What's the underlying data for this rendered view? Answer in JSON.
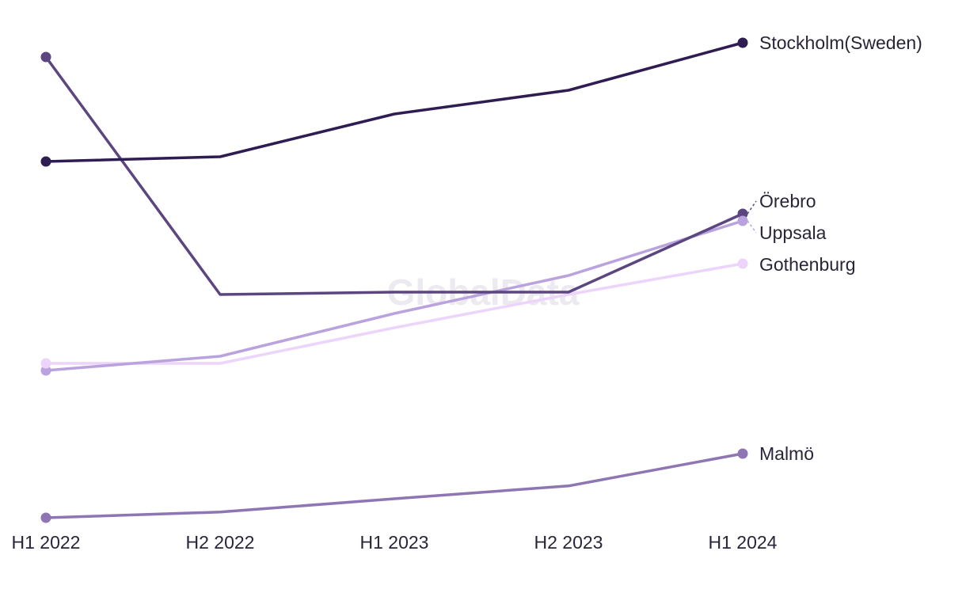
{
  "watermark": "GlobalData",
  "chart_data": {
    "type": "line",
    "title": "",
    "xlabel": "",
    "ylabel": "",
    "categories": [
      "H1 2022",
      "H2 2022",
      "H1 2023",
      "H2 2023",
      "H1 2024"
    ],
    "ylim": [
      0,
      100
    ],
    "grid": false,
    "legend": "direct labels at right end of lines",
    "series": [
      {
        "name": "Stockholm(Sweden)",
        "color": "#2f1c52",
        "values": [
          75,
          76,
          85,
          90,
          100
        ]
      },
      {
        "name": "Örebro",
        "color": "#5c4680",
        "values": [
          97,
          47,
          47.5,
          47.5,
          64
        ]
      },
      {
        "name": "Uppsala",
        "color": "#b9a2de",
        "values": [
          31,
          34,
          43,
          51,
          62.5
        ]
      },
      {
        "name": "Gothenburg",
        "color": "#ecd4fa",
        "values": [
          32.5,
          32.5,
          40,
          47,
          53.5
        ]
      },
      {
        "name": "Malmö",
        "color": "#8e75b3",
        "values": [
          0,
          1.2,
          4,
          6.7,
          13.5
        ]
      }
    ]
  }
}
